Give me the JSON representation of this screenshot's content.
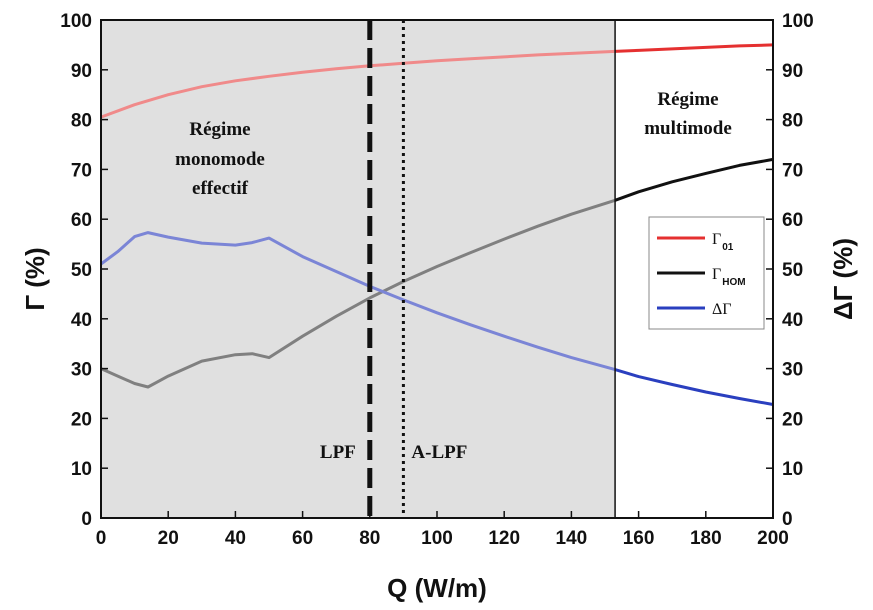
{
  "chart_data": {
    "type": "line",
    "title": "",
    "xlabel": "Q (W/m)",
    "ylabel_left": "Γ (%)",
    "ylabel_right": "ΔΓ (%)",
    "xlim": [
      0,
      200
    ],
    "ylim": [
      0,
      100
    ],
    "ylim_right": [
      0,
      100
    ],
    "x_ticks": [
      "0",
      "20",
      "40",
      "60",
      "80",
      "100",
      "120",
      "140",
      "160",
      "180",
      "200"
    ],
    "y_ticks": [
      "0",
      "10",
      "20",
      "30",
      "40",
      "50",
      "60",
      "70",
      "80",
      "90",
      "100"
    ],
    "y_ticks_right": [
      "0",
      "10",
      "20",
      "30",
      "40",
      "50",
      "60",
      "70",
      "80",
      "90",
      "100"
    ],
    "grid": false,
    "legend_position": "middle-right",
    "shaded_region": {
      "x_range": [
        0,
        153
      ],
      "color": "#e0e0e0",
      "label": [
        "Régime",
        "monomode",
        "effectif"
      ]
    },
    "unshaded_region_label": [
      "Régime",
      "multimode"
    ],
    "vertical_markers": [
      {
        "x": 80,
        "style": "dashed",
        "label": "LPF"
      },
      {
        "x": 90,
        "style": "dotted",
        "label": "A-LPF"
      },
      {
        "x": 153,
        "style": "solid",
        "label": ""
      }
    ],
    "series": [
      {
        "name": "Γ01",
        "legend_main": "Γ",
        "legend_sub": "01",
        "color": "#e53030",
        "faded_color": "#f08a8a",
        "axis": "left",
        "x": [
          0,
          10,
          20,
          30,
          40,
          50,
          60,
          70,
          80,
          90,
          100,
          110,
          120,
          130,
          140,
          153,
          160,
          170,
          180,
          190,
          200
        ],
        "values": [
          80.5,
          83,
          85,
          86.6,
          87.8,
          88.7,
          89.5,
          90.2,
          90.8,
          91.3,
          91.8,
          92.2,
          92.6,
          93,
          93.3,
          93.7,
          93.9,
          94.2,
          94.5,
          94.8,
          95
        ]
      },
      {
        "name": "ΓHOM",
        "legend_main": "Γ",
        "legend_sub": "HOM",
        "color": "#111111",
        "faded_color": "#808080",
        "axis": "left",
        "x": [
          0,
          5,
          10,
          14,
          20,
          30,
          40,
          45,
          50,
          60,
          70,
          80,
          90,
          100,
          110,
          120,
          130,
          140,
          153,
          160,
          170,
          180,
          190,
          200
        ],
        "values": [
          30,
          28.5,
          27,
          26.3,
          28.5,
          31.5,
          32.8,
          33,
          32.2,
          36.5,
          40.5,
          44.2,
          47.5,
          50.5,
          53.3,
          56,
          58.6,
          61,
          63.8,
          65.5,
          67.5,
          69.2,
          70.8,
          72
        ]
      },
      {
        "name": "ΔΓ",
        "legend_main": "ΔΓ",
        "legend_sub": "",
        "color": "#2a3fbf",
        "faded_color": "#7b85d6",
        "axis": "right",
        "x": [
          0,
          5,
          10,
          14,
          20,
          30,
          40,
          45,
          50,
          60,
          70,
          80,
          90,
          100,
          110,
          120,
          130,
          140,
          153,
          160,
          170,
          180,
          190,
          200
        ],
        "values": [
          51,
          53.5,
          56.5,
          57.3,
          56.4,
          55.2,
          54.8,
          55.3,
          56.2,
          52.5,
          49.5,
          46.5,
          43.8,
          41.2,
          38.8,
          36.5,
          34.3,
          32.2,
          29.8,
          28.4,
          26.8,
          25.3,
          24,
          22.8
        ]
      }
    ]
  }
}
